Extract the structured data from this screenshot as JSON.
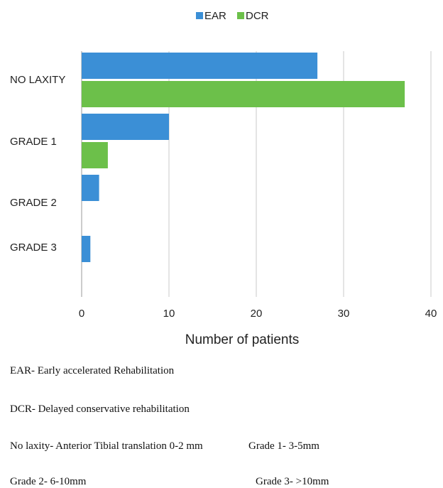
{
  "chart_data": {
    "type": "bar",
    "orientation": "horizontal",
    "categories": [
      "NO LAXITY",
      "GRADE 1",
      "GRADE 2",
      "GRADE 3"
    ],
    "series": [
      {
        "name": "EAR",
        "values": [
          27,
          10,
          2,
          1
        ],
        "color": "#3b8fd6"
      },
      {
        "name": "DCR",
        "values": [
          37,
          3,
          0,
          0
        ],
        "color": "#6cc04a"
      }
    ],
    "xlabel": "Number of patients",
    "ylabel": "",
    "xlim": [
      0,
      40
    ],
    "x_ticks": [
      "0",
      "10",
      "20",
      "30",
      "40"
    ],
    "grid": true,
    "legend_position": "top-center"
  },
  "notes": {
    "ear": "EAR- Early accelerated Rehabilitation",
    "dcr": "DCR- Delayed conservative rehabilitation",
    "no_laxity": "No laxity- Anterior Tibial translation 0-2 mm",
    "grade1": "Grade 1- 3-5mm",
    "grade2": "Grade 2- 6-10mm",
    "grade3": "Grade 3- >10mm"
  }
}
